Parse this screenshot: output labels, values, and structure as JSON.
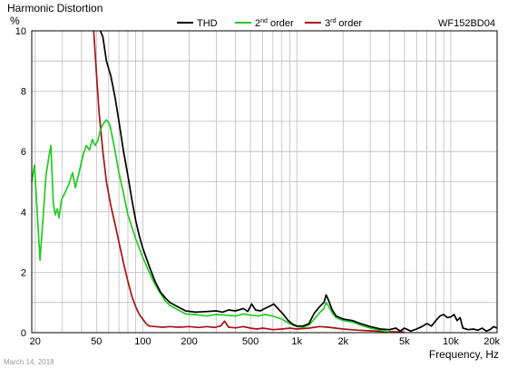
{
  "chart_data": {
    "type": "line",
    "title": "Harmonic Distortion",
    "ylabel": "%",
    "xlabel": "Frequency, Hz",
    "model": "WF152BD04",
    "date": "March 14, 2018",
    "xscale": "log",
    "xlim": [
      19,
      20000
    ],
    "ylim": [
      0,
      10
    ],
    "grid": true,
    "legend_position": "top",
    "y_ticks": [
      {
        "value": 0,
        "label": "0"
      },
      {
        "value": 2,
        "label": "2"
      },
      {
        "value": 4,
        "label": "4"
      },
      {
        "value": 6,
        "label": "6"
      },
      {
        "value": 8,
        "label": "8"
      },
      {
        "value": 10,
        "label": "10"
      }
    ],
    "x_ticks": [
      {
        "value": 20,
        "label": "20"
      },
      {
        "value": 50,
        "label": "50"
      },
      {
        "value": 100,
        "label": "100"
      },
      {
        "value": 200,
        "label": "200"
      },
      {
        "value": 500,
        "label": "500"
      },
      {
        "value": 1000,
        "label": "1k"
      },
      {
        "value": 2000,
        "label": "2k"
      },
      {
        "value": 5000,
        "label": "5k"
      },
      {
        "value": 10000,
        "label": "10k"
      },
      {
        "value": 20000,
        "label": "20k"
      }
    ],
    "legend": [
      {
        "label": "THD",
        "sup": "",
        "suffix": ""
      },
      {
        "label": "2",
        "sup": "nd",
        "suffix": " order"
      },
      {
        "label": "3",
        "sup": "rd",
        "suffix": " order"
      }
    ],
    "series": [
      {
        "name": "THD",
        "color": "#000000",
        "points": [
          [
            53,
            10
          ],
          [
            55,
            9.8
          ],
          [
            58,
            9.0
          ],
          [
            62,
            8.5
          ],
          [
            66,
            7.8
          ],
          [
            70,
            7.0
          ],
          [
            75,
            6.0
          ],
          [
            80,
            5.2
          ],
          [
            85,
            4.4
          ],
          [
            90,
            3.7
          ],
          [
            95,
            3.2
          ],
          [
            100,
            2.8
          ],
          [
            110,
            2.2
          ],
          [
            120,
            1.7
          ],
          [
            130,
            1.35
          ],
          [
            140,
            1.15
          ],
          [
            150,
            1.0
          ],
          [
            170,
            0.85
          ],
          [
            190,
            0.72
          ],
          [
            220,
            0.68
          ],
          [
            260,
            0.7
          ],
          [
            300,
            0.72
          ],
          [
            330,
            0.68
          ],
          [
            360,
            0.75
          ],
          [
            400,
            0.72
          ],
          [
            450,
            0.8
          ],
          [
            480,
            0.7
          ],
          [
            510,
            0.95
          ],
          [
            540,
            0.75
          ],
          [
            580,
            0.72
          ],
          [
            620,
            0.8
          ],
          [
            670,
            0.88
          ],
          [
            710,
            0.95
          ],
          [
            760,
            0.78
          ],
          [
            820,
            0.6
          ],
          [
            880,
            0.4
          ],
          [
            940,
            0.28
          ],
          [
            1000,
            0.22
          ],
          [
            1100,
            0.22
          ],
          [
            1200,
            0.3
          ],
          [
            1300,
            0.65
          ],
          [
            1400,
            0.85
          ],
          [
            1500,
            1.0
          ],
          [
            1550,
            1.25
          ],
          [
            1600,
            1.1
          ],
          [
            1700,
            0.75
          ],
          [
            1800,
            0.55
          ],
          [
            2000,
            0.45
          ],
          [
            2300,
            0.4
          ],
          [
            2600,
            0.3
          ],
          [
            3000,
            0.2
          ],
          [
            3500,
            0.12
          ],
          [
            4000,
            0.1
          ],
          [
            4400,
            0.15
          ],
          [
            4700,
            0.05
          ],
          [
            5000,
            0.15
          ],
          [
            5500,
            0.05
          ],
          [
            6000,
            0.12
          ],
          [
            6500,
            0.2
          ],
          [
            7000,
            0.3
          ],
          [
            7500,
            0.22
          ],
          [
            8000,
            0.4
          ],
          [
            8500,
            0.55
          ],
          [
            9000,
            0.6
          ],
          [
            9500,
            0.5
          ],
          [
            10000,
            0.52
          ],
          [
            10500,
            0.6
          ],
          [
            11000,
            0.4
          ],
          [
            11500,
            0.5
          ],
          [
            12000,
            0.15
          ],
          [
            13000,
            0.1
          ],
          [
            14000,
            0.12
          ],
          [
            15000,
            0.08
          ],
          [
            16000,
            0.15
          ],
          [
            17000,
            0.05
          ],
          [
            18000,
            0.1
          ],
          [
            19000,
            0.2
          ],
          [
            20000,
            0.15
          ]
        ]
      },
      {
        "name": "2nd order",
        "color": "#22cc22",
        "points": [
          [
            19,
            5.0
          ],
          [
            19.8,
            5.55
          ],
          [
            20.5,
            4.2
          ],
          [
            21.5,
            2.4
          ],
          [
            22.5,
            3.8
          ],
          [
            23.5,
            5.2
          ],
          [
            24.5,
            5.8
          ],
          [
            25.3,
            6.2
          ],
          [
            26.2,
            4.3
          ],
          [
            27,
            3.9
          ],
          [
            27.8,
            4.1
          ],
          [
            28.6,
            3.8
          ],
          [
            29.6,
            4.4
          ],
          [
            31,
            4.6
          ],
          [
            33,
            4.9
          ],
          [
            35,
            5.3
          ],
          [
            36.5,
            4.8
          ],
          [
            38.5,
            5.3
          ],
          [
            41,
            5.9
          ],
          [
            43,
            6.2
          ],
          [
            45,
            6.05
          ],
          [
            47,
            6.4
          ],
          [
            49,
            6.2
          ],
          [
            51,
            6.35
          ],
          [
            53,
            6.7
          ],
          [
            55,
            6.9
          ],
          [
            58,
            7.05
          ],
          [
            61,
            6.9
          ],
          [
            65,
            6.2
          ],
          [
            70,
            5.3
          ],
          [
            75,
            4.6
          ],
          [
            80,
            3.9
          ],
          [
            90,
            3.1
          ],
          [
            100,
            2.5
          ],
          [
            110,
            2.0
          ],
          [
            120,
            1.6
          ],
          [
            130,
            1.3
          ],
          [
            140,
            1.05
          ],
          [
            150,
            0.9
          ],
          [
            170,
            0.75
          ],
          [
            190,
            0.62
          ],
          [
            220,
            0.6
          ],
          [
            260,
            0.55
          ],
          [
            300,
            0.6
          ],
          [
            350,
            0.58
          ],
          [
            400,
            0.55
          ],
          [
            450,
            0.62
          ],
          [
            500,
            0.58
          ],
          [
            560,
            0.55
          ],
          [
            620,
            0.6
          ],
          [
            700,
            0.55
          ],
          [
            800,
            0.45
          ],
          [
            900,
            0.3
          ],
          [
            1000,
            0.2
          ],
          [
            1100,
            0.18
          ],
          [
            1200,
            0.25
          ],
          [
            1300,
            0.45
          ],
          [
            1400,
            0.65
          ],
          [
            1500,
            0.8
          ],
          [
            1550,
            1.0
          ],
          [
            1600,
            0.9
          ],
          [
            1700,
            0.65
          ],
          [
            1800,
            0.5
          ],
          [
            2000,
            0.4
          ],
          [
            2300,
            0.35
          ],
          [
            2600,
            0.25
          ],
          [
            3000,
            0.15
          ],
          [
            3500,
            0.08
          ],
          [
            4000,
            0.02
          ]
        ]
      },
      {
        "name": "3rd order",
        "color": "#aa1111",
        "points": [
          [
            48,
            10
          ],
          [
            50,
            8.6
          ],
          [
            52,
            7.3
          ],
          [
            55,
            6.0
          ],
          [
            58,
            5.0
          ],
          [
            62,
            4.2
          ],
          [
            66,
            3.6
          ],
          [
            70,
            3.0
          ],
          [
            75,
            2.3
          ],
          [
            80,
            1.7
          ],
          [
            85,
            1.2
          ],
          [
            90,
            0.85
          ],
          [
            95,
            0.6
          ],
          [
            100,
            0.45
          ],
          [
            105,
            0.3
          ],
          [
            110,
            0.22
          ],
          [
            120,
            0.2
          ],
          [
            135,
            0.18
          ],
          [
            150,
            0.2
          ],
          [
            170,
            0.18
          ],
          [
            200,
            0.2
          ],
          [
            230,
            0.17
          ],
          [
            260,
            0.2
          ],
          [
            290,
            0.17
          ],
          [
            320,
            0.22
          ],
          [
            340,
            0.38
          ],
          [
            360,
            0.18
          ],
          [
            400,
            0.16
          ],
          [
            450,
            0.2
          ],
          [
            500,
            0.15
          ],
          [
            550,
            0.12
          ],
          [
            600,
            0.15
          ],
          [
            700,
            0.1
          ],
          [
            800,
            0.12
          ],
          [
            900,
            0.15
          ],
          [
            1000,
            0.12
          ],
          [
            1200,
            0.15
          ],
          [
            1400,
            0.2
          ],
          [
            1600,
            0.18
          ],
          [
            2000,
            0.12
          ],
          [
            2500,
            0.08
          ],
          [
            3000,
            0.06
          ],
          [
            4000,
            0.03
          ],
          [
            5000,
            0.02
          ]
        ]
      }
    ]
  }
}
